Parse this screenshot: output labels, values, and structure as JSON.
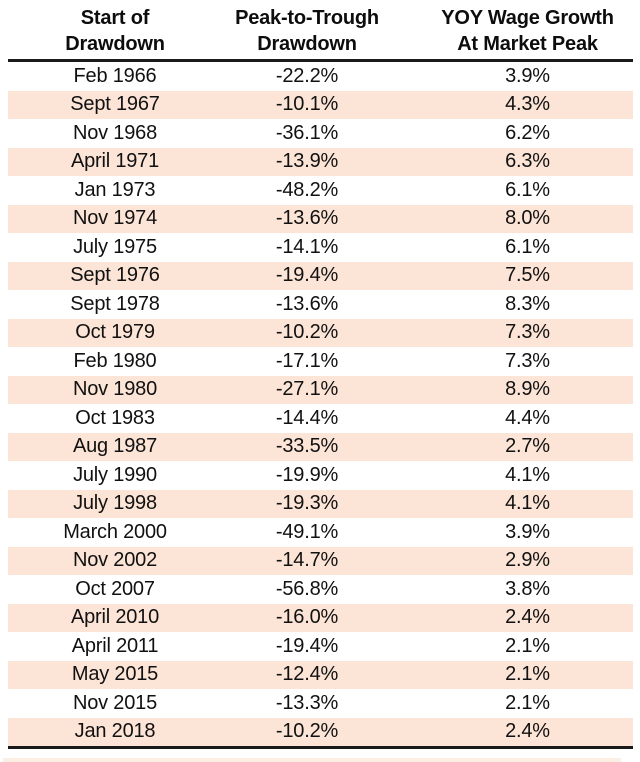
{
  "chart_data": {
    "type": "table",
    "title": "",
    "columns": [
      "Start of Drawdown",
      "Peak-to-Trough Drawdown",
      "YOY Wage Growth At Market Peak"
    ],
    "column_headers": [
      {
        "line1": "Start of",
        "line2": "Drawdown"
      },
      {
        "line1": "Peak-to-Trough",
        "line2": "Drawdown"
      },
      {
        "line1": "YOY Wage Growth",
        "line2": "At Market Peak"
      }
    ],
    "rows": [
      {
        "date": "Feb 1966",
        "drawdown": "-22.2%",
        "wage": "3.9%"
      },
      {
        "date": "Sept 1967",
        "drawdown": "-10.1%",
        "wage": "4.3%"
      },
      {
        "date": "Nov 1968",
        "drawdown": "-36.1%",
        "wage": "6.2%"
      },
      {
        "date": "April 1971",
        "drawdown": "-13.9%",
        "wage": "6.3%"
      },
      {
        "date": "Jan 1973",
        "drawdown": "-48.2%",
        "wage": "6.1%"
      },
      {
        "date": "Nov 1974",
        "drawdown": "-13.6%",
        "wage": "8.0%"
      },
      {
        "date": "July 1975",
        "drawdown": "-14.1%",
        "wage": "6.1%"
      },
      {
        "date": "Sept 1976",
        "drawdown": "-19.4%",
        "wage": "7.5%"
      },
      {
        "date": "Sept 1978",
        "drawdown": "-13.6%",
        "wage": "8.3%"
      },
      {
        "date": "Oct 1979",
        "drawdown": "-10.2%",
        "wage": "7.3%"
      },
      {
        "date": "Feb 1980",
        "drawdown": "-17.1%",
        "wage": "7.3%"
      },
      {
        "date": "Nov 1980",
        "drawdown": "-27.1%",
        "wage": "8.9%"
      },
      {
        "date": "Oct 1983",
        "drawdown": "-14.4%",
        "wage": "4.4%"
      },
      {
        "date": "Aug 1987",
        "drawdown": "-33.5%",
        "wage": "2.7%"
      },
      {
        "date": "July 1990",
        "drawdown": "-19.9%",
        "wage": "4.1%"
      },
      {
        "date": "July 1998",
        "drawdown": "-19.3%",
        "wage": "4.1%"
      },
      {
        "date": "March 2000",
        "drawdown": "-49.1%",
        "wage": "3.9%"
      },
      {
        "date": "Nov 2002",
        "drawdown": "-14.7%",
        "wage": "2.9%"
      },
      {
        "date": "Oct 2007",
        "drawdown": "-56.8%",
        "wage": "3.8%"
      },
      {
        "date": "April 2010",
        "drawdown": "-16.0%",
        "wage": "2.4%"
      },
      {
        "date": "April 2011",
        "drawdown": "-19.4%",
        "wage": "2.1%"
      },
      {
        "date": "May 2015",
        "drawdown": "-12.4%",
        "wage": "2.1%"
      },
      {
        "date": "Nov 2015",
        "drawdown": "-13.3%",
        "wage": "2.1%"
      },
      {
        "date": "Jan 2018",
        "drawdown": "-10.2%",
        "wage": "2.4%"
      }
    ],
    "layout": {
      "stripe_color": "#fce4d6",
      "rule_color": "#1a1a1a",
      "text_color": "#111111",
      "striped_rows": "even"
    }
  }
}
